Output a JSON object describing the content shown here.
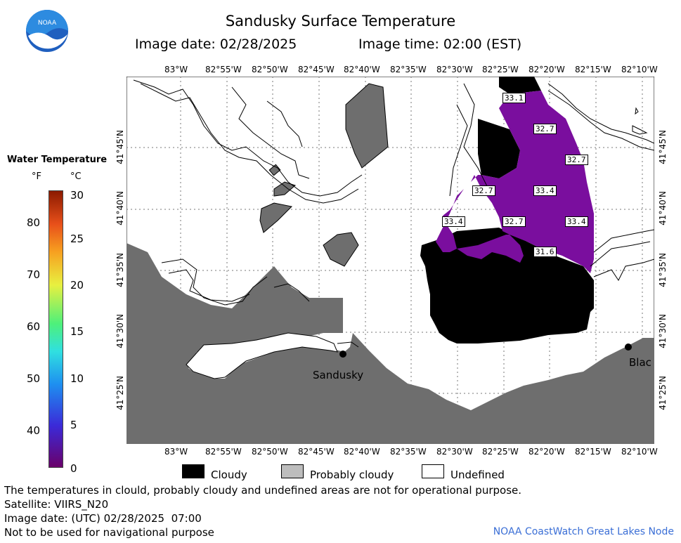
{
  "title": "Sandusky Surface Temperature",
  "image_date": "Image date: 02/28/2025",
  "image_time": "Image time: 02:00 (EST)",
  "logo_text": "NOAA",
  "colorbar": {
    "title": "Water Temperature",
    "unit_f": "°F",
    "unit_c": "°C",
    "f_ticks": [
      "80",
      "70",
      "60",
      "50",
      "40"
    ],
    "c_ticks": [
      "30",
      "25",
      "20",
      "15",
      "10",
      "5",
      "0"
    ]
  },
  "top_lon_labels": [
    "83°W",
    "82°55'W",
    "82°50'W",
    "82°45'W",
    "82°40'W",
    "82°35'W",
    "82°30'W",
    "82°25'W",
    "82°20'W",
    "82°15'W",
    "82°10'W"
  ],
  "bottom_lon_labels": [
    "83°W",
    "82°55'W",
    "82°50'W",
    "82°45'W",
    "82°40'W",
    "82°35'W",
    "82°30'W",
    "82°25'W",
    "82°20'W",
    "82°15'W",
    "82°10'W"
  ],
  "left_lat_labels": [
    "41°45'N",
    "41°40'N",
    "41°35'N",
    "41°30'N",
    "41°25'N"
  ],
  "right_lat_labels": [
    "41°45'N",
    "41°40'N",
    "41°35'N",
    "41°30'N",
    "41°25'N"
  ],
  "temp_labels": [
    "33.1",
    "32.7",
    "32.7",
    "32.7",
    "33.4",
    "33.4",
    "32.7",
    "33.4",
    "31.6"
  ],
  "places": {
    "sandusky": "Sandusky",
    "black": "Blac"
  },
  "legend": {
    "cloudy": "Cloudy",
    "probably_cloudy": "Probably cloudy",
    "undefined": "Undefined"
  },
  "colors": {
    "land": "#6e6e6e",
    "cloud": "#000000",
    "prob_cloud": "#bdbdbd",
    "water": "#7a0e9e"
  },
  "footer": [
    "The temperatures in clould, probably cloudy and undefined areas are not for operational purpose.",
    "Satellite: VIIRS_N20",
    "Image date: (UTC) 02/28/2025  07:00",
    "Not to be used for navigational purpose"
  ],
  "credit": "NOAA CoastWatch Great Lakes Node"
}
